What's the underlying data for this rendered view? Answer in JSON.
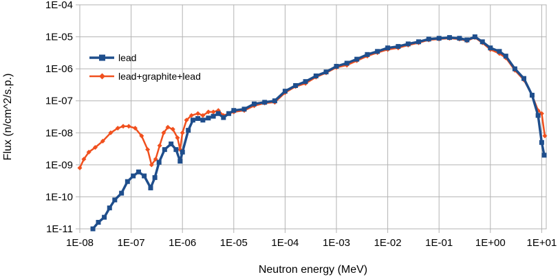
{
  "chart_data": {
    "type": "line",
    "xscale": "log",
    "yscale": "log",
    "xlim": [
      1e-08,
      12
    ],
    "ylim": [
      1e-11,
      0.0001
    ],
    "grid": true,
    "legend_position": "upper-left",
    "xlabel": "Neutron energy (MeV)",
    "ylabel": "Flux (n/cm^2/s.p.)",
    "x_tick_labels": [
      "1E-08",
      "1E-07",
      "1E-06",
      "1E-05",
      "1E-04",
      "1E-03",
      "1E-02",
      "1E-01",
      "1E+00",
      "1E+01"
    ],
    "y_tick_labels": [
      "1E-11",
      "1E-10",
      "1E-09",
      "1E-08",
      "1E-07",
      "1E-06",
      "1E-05",
      "1E-04"
    ],
    "series": [
      {
        "name": "lead",
        "color": "#1f4e8c",
        "marker": "square",
        "points": [
          [
            1.8e-08,
            1e-11
          ],
          [
            2.3e-08,
            1.6e-11
          ],
          [
            3e-08,
            2.3e-11
          ],
          [
            3.8e-08,
            4.5e-11
          ],
          [
            4.8e-08,
            8e-11
          ],
          [
            6.5e-08,
            1.3e-10
          ],
          [
            8.5e-08,
            3e-10
          ],
          [
            1.1e-07,
            4.5e-10
          ],
          [
            1.4e-07,
            6e-10
          ],
          [
            1.8e-07,
            4.5e-10
          ],
          [
            2.4e-07,
            1.9e-10
          ],
          [
            2.9e-07,
            4e-10
          ],
          [
            3.5e-07,
            1.2e-09
          ],
          [
            4.5e-07,
            3e-09
          ],
          [
            6e-07,
            4.5e-09
          ],
          [
            7.5e-07,
            3e-09
          ],
          [
            9e-07,
            1.3e-09
          ],
          [
            1e-06,
            2.5e-09
          ],
          [
            1.3e-06,
            1.2e-08
          ],
          [
            1.6e-06,
            2.5e-08
          ],
          [
            2e-06,
            2.8e-08
          ],
          [
            2.5e-06,
            2.5e-08
          ],
          [
            3.2e-06,
            2.9e-08
          ],
          [
            4e-06,
            3.3e-08
          ],
          [
            5e-06,
            4e-08
          ],
          [
            6.3e-06,
            3e-08
          ],
          [
            8e-06,
            4e-08
          ],
          [
            1e-05,
            5e-08
          ],
          [
            1.6e-05,
            5.5e-08
          ],
          [
            2.5e-05,
            8e-08
          ],
          [
            4e-05,
            9e-08
          ],
          [
            6.3e-05,
            1e-07
          ],
          [
            0.0001,
            2e-07
          ],
          [
            0.00016,
            3e-07
          ],
          [
            0.00025,
            4e-07
          ],
          [
            0.0004,
            6e-07
          ],
          [
            0.00063,
            8e-07
          ],
          [
            0.001,
            1.2e-06
          ],
          [
            0.0016,
            1.5e-06
          ],
          [
            0.0025,
            2e-06
          ],
          [
            0.004,
            2.8e-06
          ],
          [
            0.0063,
            3.5e-06
          ],
          [
            0.01,
            4.5e-06
          ],
          [
            0.016,
            5e-06
          ],
          [
            0.025,
            6e-06
          ],
          [
            0.04,
            7e-06
          ],
          [
            0.063,
            8.5e-06
          ],
          [
            0.1,
            9e-06
          ],
          [
            0.16,
            9.5e-06
          ],
          [
            0.25,
            9e-06
          ],
          [
            0.35,
            8e-06
          ],
          [
            0.5,
            1e-05
          ],
          [
            0.7,
            7e-06
          ],
          [
            1.0,
            4.5e-06
          ],
          [
            1.5,
            3.5e-06
          ],
          [
            2.0,
            2.5e-06
          ],
          [
            3.0,
            1e-06
          ],
          [
            4.5,
            5e-07
          ],
          [
            6.5,
            1.5e-07
          ],
          [
            8.5,
            3.5e-08
          ],
          [
            10.0,
            5e-09
          ],
          [
            11.2,
            2e-09
          ]
        ]
      },
      {
        "name": "lead+graphite+lead",
        "color": "#f0501e",
        "marker": "diamond",
        "points": [
          [
            1e-08,
            8e-10
          ],
          [
            1.2e-08,
            1.5e-09
          ],
          [
            1.5e-08,
            2.5e-09
          ],
          [
            2e-08,
            3.5e-09
          ],
          [
            2.8e-08,
            5.5e-09
          ],
          [
            4e-08,
            1e-08
          ],
          [
            5.5e-08,
            1.4e-08
          ],
          [
            7e-08,
            1.6e-08
          ],
          [
            9e-08,
            1.6e-08
          ],
          [
            1.2e-07,
            1.4e-08
          ],
          [
            1.6e-07,
            8e-09
          ],
          [
            2.1e-07,
            3e-09
          ],
          [
            2.5e-07,
            1e-09
          ],
          [
            3e-07,
            1.5e-09
          ],
          [
            3.6e-07,
            4e-09
          ],
          [
            4.3e-07,
            1e-08
          ],
          [
            5.2e-07,
            1.5e-08
          ],
          [
            6.5e-07,
            1.3e-08
          ],
          [
            8e-07,
            7e-09
          ],
          [
            9e-07,
            3e-09
          ],
          [
            1e-06,
            1e-08
          ],
          [
            1.2e-06,
            2.5e-08
          ],
          [
            1.5e-06,
            3.5e-08
          ],
          [
            2e-06,
            4e-08
          ],
          [
            2.5e-06,
            3.5e-08
          ],
          [
            3.2e-06,
            4.5e-08
          ],
          [
            4e-06,
            4.5e-08
          ],
          [
            5e-06,
            5e-08
          ],
          [
            6.3e-06,
            3.5e-08
          ],
          [
            1e-05,
            4.5e-08
          ],
          [
            1.6e-05,
            5e-08
          ],
          [
            2.5e-05,
            7e-08
          ],
          [
            4e-05,
            8.5e-08
          ],
          [
            6.3e-05,
            9e-08
          ],
          [
            0.0001,
            1.8e-07
          ],
          [
            0.00016,
            2.8e-07
          ],
          [
            0.00025,
            3.5e-07
          ],
          [
            0.0004,
            5.5e-07
          ],
          [
            0.00063,
            7.5e-07
          ],
          [
            0.001,
            1.1e-06
          ],
          [
            0.0016,
            1.3e-06
          ],
          [
            0.0025,
            1.8e-06
          ],
          [
            0.004,
            2.5e-06
          ],
          [
            0.0063,
            3.2e-06
          ],
          [
            0.01,
            4e-06
          ],
          [
            0.016,
            4.5e-06
          ],
          [
            0.025,
            5.5e-06
          ],
          [
            0.04,
            6.5e-06
          ],
          [
            0.063,
            8e-06
          ],
          [
            0.1,
            8.5e-06
          ],
          [
            0.16,
            9e-06
          ],
          [
            0.25,
            8.5e-06
          ],
          [
            0.35,
            7.5e-06
          ],
          [
            0.5,
            9.5e-06
          ],
          [
            0.7,
            6.5e-06
          ],
          [
            1.0,
            4e-06
          ],
          [
            1.5,
            3e-06
          ],
          [
            2.0,
            2.2e-06
          ],
          [
            3.0,
            9e-07
          ],
          [
            4.5,
            4.5e-07
          ],
          [
            6.5,
            1.5e-07
          ],
          [
            8.5,
            5e-08
          ],
          [
            10.0,
            4e-08
          ],
          [
            11.5,
            8e-09
          ]
        ]
      }
    ]
  }
}
